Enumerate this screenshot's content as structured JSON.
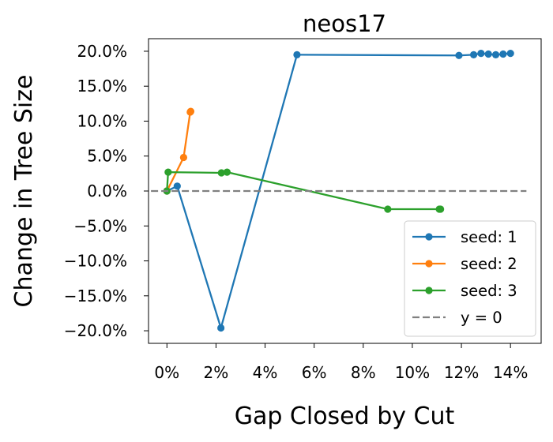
{
  "chart_data": {
    "type": "line",
    "title": "neos17",
    "xlabel": "Gap Closed by Cut",
    "ylabel": "Change in Tree Size",
    "xlim": [
      -0.0075,
      0.1525
    ],
    "ylim": [
      -0.218,
      0.218
    ],
    "x_ticks": [
      0,
      0.02,
      0.04,
      0.06,
      0.08,
      0.1,
      0.12,
      0.14
    ],
    "x_tick_labels": [
      "0%",
      "2%",
      "4%",
      "6%",
      "8%",
      "10%",
      "12%",
      "14%"
    ],
    "y_ticks": [
      -0.2,
      -0.15,
      -0.1,
      -0.05,
      0.0,
      0.05,
      0.1,
      0.15,
      0.2
    ],
    "y_tick_labels": [
      "−20.0%",
      "−15.0%",
      "−10.0%",
      "−5.0%",
      "0.0%",
      "5.0%",
      "10.0%",
      "15.0%",
      "20.0%"
    ],
    "grid": false,
    "legend_position": "lower-right",
    "series": [
      {
        "name": "seed: 1",
        "color": "#1f77b4",
        "marker": "circle",
        "x": [
          0.0,
          0.0042,
          0.022,
          0.053,
          0.119,
          0.125,
          0.128,
          0.131,
          0.134,
          0.137,
          0.14
        ],
        "y": [
          0.0,
          0.007,
          -0.196,
          0.195,
          0.194,
          0.195,
          0.197,
          0.196,
          0.195,
          0.196,
          0.197
        ]
      },
      {
        "name": "seed: 2",
        "color": "#ff7f0e",
        "marker": "circle",
        "x": [
          0.0,
          0.0068,
          0.0095,
          0.0097
        ],
        "y": [
          0.0,
          0.048,
          0.113,
          0.114
        ]
      },
      {
        "name": "seed: 3",
        "color": "#2ca02c",
        "marker": "circle",
        "x": [
          0.0,
          0.0005,
          0.0222,
          0.0245,
          0.09,
          0.111,
          0.1115
        ],
        "y": [
          0.0,
          0.027,
          0.026,
          0.027,
          -0.026,
          -0.026,
          -0.026
        ]
      },
      {
        "name": "y = 0",
        "color": "#808080",
        "style": "dashed",
        "x": [
          -0.0065,
          0.1465
        ],
        "y": [
          0.0,
          0.0
        ]
      }
    ]
  }
}
